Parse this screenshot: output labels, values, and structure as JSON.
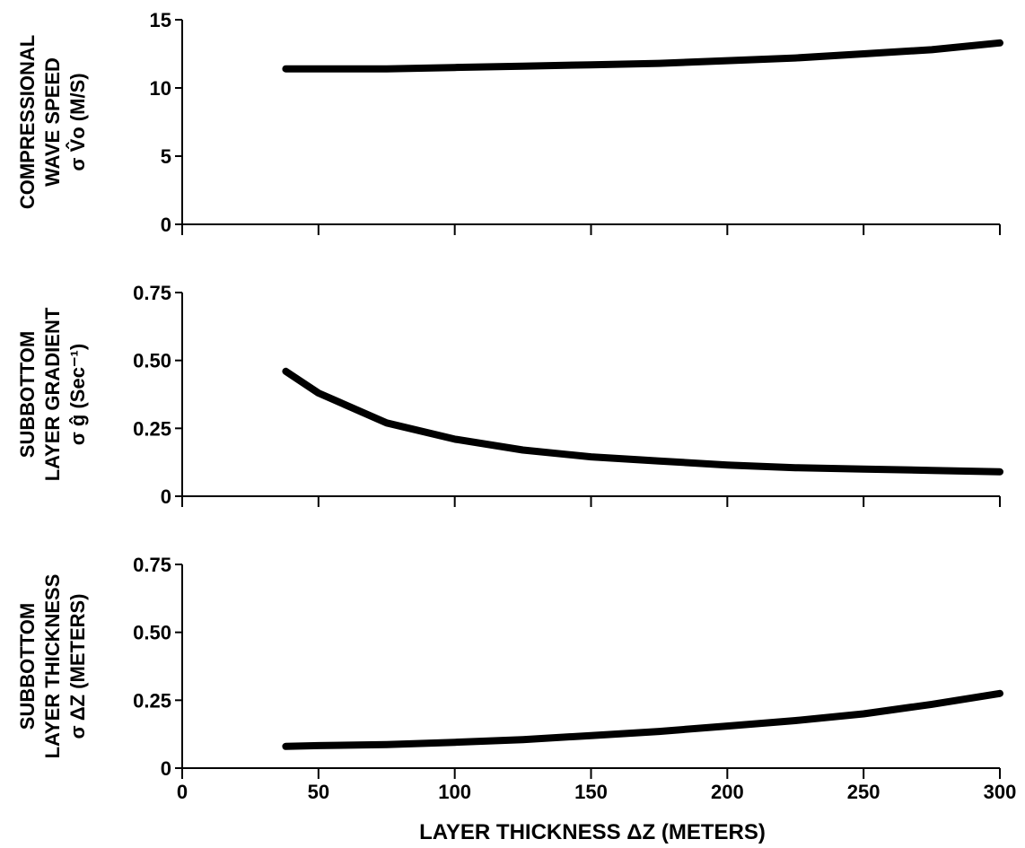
{
  "x_axis": {
    "label": "LAYER THICKNESS ΔZ (METERS)",
    "ticks": [
      0,
      50,
      100,
      150,
      200,
      250,
      300
    ],
    "range": [
      0,
      300
    ]
  },
  "chart_data": [
    {
      "type": "line",
      "ylabel_lines": [
        "COMPRESSIONAL",
        "WAVE SPEED",
        "σ V̂o (M/S)"
      ],
      "y_ticks": [
        "0",
        "5",
        "10",
        "15"
      ],
      "ylim": [
        0,
        15
      ],
      "xlim": [
        0,
        300
      ],
      "grid": false,
      "series": [
        {
          "x": [
            38,
            50,
            75,
            100,
            125,
            150,
            175,
            200,
            225,
            250,
            275,
            300
          ],
          "y": [
            11.4,
            11.4,
            11.4,
            11.5,
            11.6,
            11.7,
            11.8,
            12.0,
            12.2,
            12.5,
            12.8,
            13.3
          ]
        }
      ]
    },
    {
      "type": "line",
      "ylabel_lines": [
        "SUBBOTTOM",
        "LAYER GRADIENT",
        "σ ĝ (Sec⁻¹)"
      ],
      "y_ticks": [
        "0",
        "0.25",
        "0.50",
        "0.75"
      ],
      "ylim": [
        0,
        0.75
      ],
      "xlim": [
        0,
        300
      ],
      "grid": false,
      "series": [
        {
          "x": [
            38,
            50,
            75,
            100,
            125,
            150,
            175,
            200,
            225,
            250,
            275,
            300
          ],
          "y": [
            0.46,
            0.38,
            0.27,
            0.21,
            0.17,
            0.145,
            0.13,
            0.115,
            0.105,
            0.1,
            0.095,
            0.09
          ]
        }
      ]
    },
    {
      "type": "line",
      "ylabel_lines": [
        "SUBBOTTOM",
        "LAYER THICKNESS",
        "σ ΔZ (METERS)"
      ],
      "y_ticks": [
        "0",
        "0.25",
        "0.50",
        "0.75"
      ],
      "ylim": [
        0,
        0.75
      ],
      "xlim": [
        0,
        300
      ],
      "grid": false,
      "series": [
        {
          "x": [
            38,
            50,
            75,
            100,
            125,
            150,
            175,
            200,
            225,
            250,
            275,
            300
          ],
          "y": [
            0.08,
            0.083,
            0.087,
            0.095,
            0.105,
            0.12,
            0.135,
            0.155,
            0.175,
            0.2,
            0.235,
            0.275
          ]
        }
      ]
    }
  ]
}
